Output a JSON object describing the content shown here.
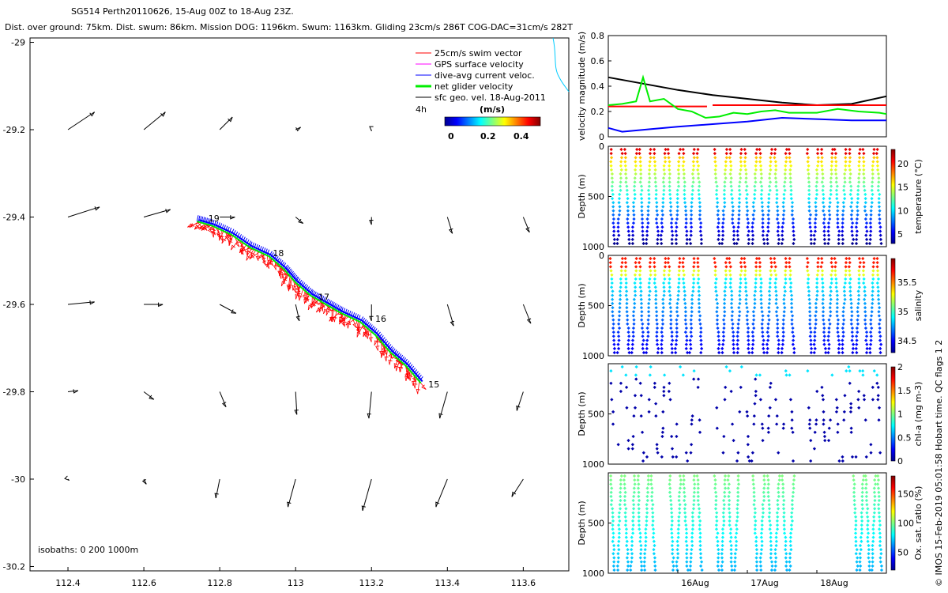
{
  "header": {
    "title": "SG514 Perth20110626, 15-Aug 00Z to 18-Aug 23Z.",
    "subtitle": "Dist. over ground: 75km. Dist. swum: 86km. Mission DOG: 1196km. Swum: 1163km. Gliding 23cm/s 286T COG-DAC=31cm/s 282T"
  },
  "footer_credit": "© IMOS 15-Feb-2019 05:01:58 Hobart time. QC flags 1 2",
  "colors": {
    "swim": "#ff0000",
    "gps": "#ff00ff",
    "dac": "#0000ff",
    "net": "#00ee00",
    "geo": "#000000",
    "coast": "#00ccff"
  },
  "chart_data": [
    {
      "type": "scatter",
      "name": "map",
      "xlim": [
        112.3,
        113.72
      ],
      "ylim": [
        -30.21,
        -28.99
      ],
      "x_ticks": [
        112.4,
        112.6,
        112.8,
        113,
        113.2,
        113.4,
        113.6
      ],
      "x_tick_labels": [
        "112.4",
        "112.6",
        "112.8",
        "113",
        "113.2",
        "113.4",
        "113.6"
      ],
      "y_ticks": [
        -29,
        -29.2,
        -29.4,
        -29.6,
        -29.8,
        -30,
        -30.2
      ],
      "y_tick_labels": [
        "-29",
        "-29.2",
        "-29.4",
        "-29.6",
        "-29.8",
        "-30",
        "-30.2"
      ],
      "legend": {
        "placement": "top-right",
        "entries": [
          "25cm/s swim vector",
          "GPS surface velocity",
          "dive-avg current veloc.",
          "net glider velocity",
          "sfc geo. vel. 18-Aug-2011"
        ],
        "interval_label": "4h",
        "scale_label": "(m/s)",
        "scale_ticks": [
          "0",
          "0.2",
          "0.4"
        ]
      },
      "isobaths_label": "isobaths: 0   200  1000m",
      "track": [
        {
          "lon": 112.74,
          "lat": -29.41
        },
        {
          "lon": 112.78,
          "lat": -29.42
        },
        {
          "lon": 112.83,
          "lat": -29.44
        },
        {
          "lon": 112.88,
          "lat": -29.47
        },
        {
          "lon": 112.93,
          "lat": -29.49
        },
        {
          "lon": 112.97,
          "lat": -29.52
        },
        {
          "lon": 113.0,
          "lat": -29.55
        },
        {
          "lon": 113.04,
          "lat": -29.58
        },
        {
          "lon": 113.08,
          "lat": -29.6
        },
        {
          "lon": 113.12,
          "lat": -29.62
        },
        {
          "lon": 113.17,
          "lat": -29.64
        },
        {
          "lon": 113.21,
          "lat": -29.67
        },
        {
          "lon": 113.25,
          "lat": -29.71
        },
        {
          "lon": 113.29,
          "lat": -29.74
        },
        {
          "lon": 113.33,
          "lat": -29.78
        }
      ],
      "day_labels": [
        {
          "text": "19",
          "lon": 112.77,
          "lat": -29.41
        },
        {
          "text": "18",
          "lon": 112.94,
          "lat": -29.49
        },
        {
          "text": "17",
          "lon": 113.06,
          "lat": -29.59
        },
        {
          "text": "16",
          "lon": 113.21,
          "lat": -29.64
        },
        {
          "text": "15",
          "lon": 113.35,
          "lat": -29.79
        }
      ],
      "geo_vectors": [
        {
          "lon": 112.4,
          "lat": -29.2,
          "u": 0.21,
          "v": 0.14
        },
        {
          "lon": 112.6,
          "lat": -29.2,
          "u": 0.17,
          "v": 0.14
        },
        {
          "lon": 112.8,
          "lat": -29.2,
          "u": 0.1,
          "v": 0.1
        },
        {
          "lon": 113.0,
          "lat": -29.2,
          "u": 0.04,
          "v": 0.02
        },
        {
          "lon": 113.2,
          "lat": -29.2,
          "u": 0.0,
          "v": -0.01
        },
        {
          "lon": 112.4,
          "lat": -29.4,
          "u": 0.25,
          "v": 0.08
        },
        {
          "lon": 112.6,
          "lat": -29.4,
          "u": 0.21,
          "v": 0.06
        },
        {
          "lon": 112.8,
          "lat": -29.4,
          "u": 0.12,
          "v": 0.0
        },
        {
          "lon": 113.0,
          "lat": -29.4,
          "u": 0.06,
          "v": -0.05
        },
        {
          "lon": 113.2,
          "lat": -29.4,
          "u": 0.0,
          "v": -0.06
        },
        {
          "lon": 113.4,
          "lat": -29.4,
          "u": 0.04,
          "v": -0.13
        },
        {
          "lon": 113.6,
          "lat": -29.4,
          "u": 0.05,
          "v": -0.12
        },
        {
          "lon": 112.4,
          "lat": -29.6,
          "u": 0.21,
          "v": 0.02
        },
        {
          "lon": 112.6,
          "lat": -29.6,
          "u": 0.15,
          "v": 0.0
        },
        {
          "lon": 112.8,
          "lat": -29.6,
          "u": 0.13,
          "v": -0.07
        },
        {
          "lon": 113.0,
          "lat": -29.6,
          "u": 0.03,
          "v": -0.13
        },
        {
          "lon": 113.2,
          "lat": -29.6,
          "u": 0.0,
          "v": -0.13
        },
        {
          "lon": 113.4,
          "lat": -29.6,
          "u": 0.05,
          "v": -0.17
        },
        {
          "lon": 113.6,
          "lat": -29.6,
          "u": 0.06,
          "v": -0.15
        },
        {
          "lon": 112.4,
          "lat": -29.8,
          "u": 0.08,
          "v": 0.01
        },
        {
          "lon": 112.6,
          "lat": -29.8,
          "u": 0.08,
          "v": -0.06
        },
        {
          "lon": 112.8,
          "lat": -29.8,
          "u": 0.05,
          "v": -0.12
        },
        {
          "lon": 113.0,
          "lat": -29.8,
          "u": 0.01,
          "v": -0.18
        },
        {
          "lon": 113.2,
          "lat": -29.8,
          "u": -0.02,
          "v": -0.21
        },
        {
          "lon": 113.4,
          "lat": -29.8,
          "u": -0.06,
          "v": -0.21
        },
        {
          "lon": 113.6,
          "lat": -29.8,
          "u": -0.05,
          "v": -0.15
        },
        {
          "lon": 112.4,
          "lat": -30.0,
          "u": 0.01,
          "v": -0.01
        },
        {
          "lon": 112.6,
          "lat": -30.0,
          "u": 0.02,
          "v": -0.04
        },
        {
          "lon": 112.8,
          "lat": -30.0,
          "u": -0.03,
          "v": -0.15
        },
        {
          "lon": 113.0,
          "lat": -30.0,
          "u": -0.06,
          "v": -0.22
        },
        {
          "lon": 113.2,
          "lat": -30.0,
          "u": -0.07,
          "v": -0.25
        },
        {
          "lon": 113.4,
          "lat": -30.0,
          "u": -0.09,
          "v": -0.22
        },
        {
          "lon": 113.6,
          "lat": -30.0,
          "u": -0.09,
          "v": -0.14
        }
      ]
    },
    {
      "type": "line",
      "name": "velocity",
      "ylabel": "velocity magnitude (m/s)",
      "ylim": [
        0,
        0.8
      ],
      "y_ticks": [
        0,
        0.2,
        0.4,
        0.6,
        0.8
      ],
      "y_tick_labels": [
        "0",
        "0.2",
        "0.4",
        "0.6",
        "0.8"
      ],
      "x_day_range": [
        15.0,
        19.0
      ],
      "series": [
        {
          "color": "#000000",
          "x": [
            15.0,
            15.5,
            16.0,
            16.5,
            17.0,
            17.5,
            18.0,
            18.5,
            19.0
          ],
          "y": [
            0.47,
            0.42,
            0.37,
            0.33,
            0.3,
            0.27,
            0.25,
            0.26,
            0.32
          ]
        },
        {
          "color": "#0000ff",
          "x": [
            15.0,
            15.2,
            15.6,
            16.0,
            16.5,
            17.0,
            17.5,
            18.0,
            18.5,
            19.0
          ],
          "y": [
            0.07,
            0.04,
            0.06,
            0.08,
            0.1,
            0.12,
            0.15,
            0.14,
            0.13,
            0.13
          ]
        },
        {
          "color": "#ff0000",
          "x": [
            15.0,
            16.42
          ],
          "y": [
            0.24,
            0.24
          ]
        },
        {
          "color": "#ff0000",
          "x": [
            16.5,
            19.0
          ],
          "y": [
            0.25,
            0.25
          ]
        },
        {
          "color": "#00ee00",
          "x": [
            15.0,
            15.2,
            15.4,
            15.5,
            15.6,
            15.8,
            16.0,
            16.2,
            16.4,
            16.6,
            16.8,
            17.0,
            17.2,
            17.4,
            17.6,
            17.8,
            18.0,
            18.3,
            18.6,
            18.9,
            19.0
          ],
          "y": [
            0.25,
            0.26,
            0.28,
            0.47,
            0.28,
            0.3,
            0.22,
            0.2,
            0.15,
            0.16,
            0.19,
            0.18,
            0.2,
            0.21,
            0.19,
            0.19,
            0.19,
            0.22,
            0.2,
            0.19,
            0.18
          ]
        }
      ]
    },
    {
      "type": "scatter",
      "name": "temperature",
      "ylabel": "Depth (m)",
      "colorbar_label": "temperature (°C)",
      "y_tick_labels": [
        "0",
        "500",
        "1000"
      ],
      "colorbar_ticks": [
        "5",
        "10",
        "15",
        "20"
      ],
      "clim": [
        3,
        23
      ],
      "profiles_days": [
        [
          15.0,
          16.42
        ],
        [
          16.5,
          17.75
        ],
        [
          17.83,
          19.0
        ]
      ]
    },
    {
      "type": "scatter",
      "name": "salinity",
      "ylabel": "Depth (m)",
      "colorbar_label": "salinity",
      "y_tick_labels": [
        "0",
        "500",
        "1000"
      ],
      "colorbar_ticks": [
        "34.5",
        "35",
        "35.5"
      ],
      "clim": [
        34.3,
        35.9
      ],
      "profiles_days": [
        [
          15.0,
          16.42
        ],
        [
          16.5,
          17.75
        ],
        [
          17.83,
          19.0
        ]
      ]
    },
    {
      "type": "scatter",
      "name": "chlorophyll",
      "ylabel": "Depth (m)",
      "colorbar_label": "chl-a (mg m-3)",
      "y_tick_labels": [
        "500",
        "1000"
      ],
      "colorbar_ticks": [
        "0",
        "0.5",
        "1",
        "1.5",
        "2"
      ],
      "clim": [
        0,
        2
      ],
      "profiles_days": [
        [
          15.0,
          16.42
        ],
        [
          16.5,
          17.75
        ],
        [
          17.83,
          19.0
        ]
      ]
    },
    {
      "type": "scatter",
      "name": "oxygen",
      "ylabel": "Depth (m)",
      "colorbar_label": "Ox. sat. ratio (%)",
      "y_tick_labels": [
        "500",
        "1000"
      ],
      "colorbar_ticks": [
        "50",
        "100",
        "150"
      ],
      "clim": [
        20,
        180
      ],
      "x_tick_labels": [
        "16Aug",
        "17Aug",
        "18Aug"
      ],
      "x_ticks_days": [
        16,
        17,
        18
      ],
      "profiles_days": [
        [
          15.0,
          15.75
        ],
        [
          15.85,
          16.42
        ],
        [
          16.5,
          16.95
        ],
        [
          17.05,
          17.75
        ],
        [
          18.5,
          19.0
        ]
      ]
    }
  ]
}
